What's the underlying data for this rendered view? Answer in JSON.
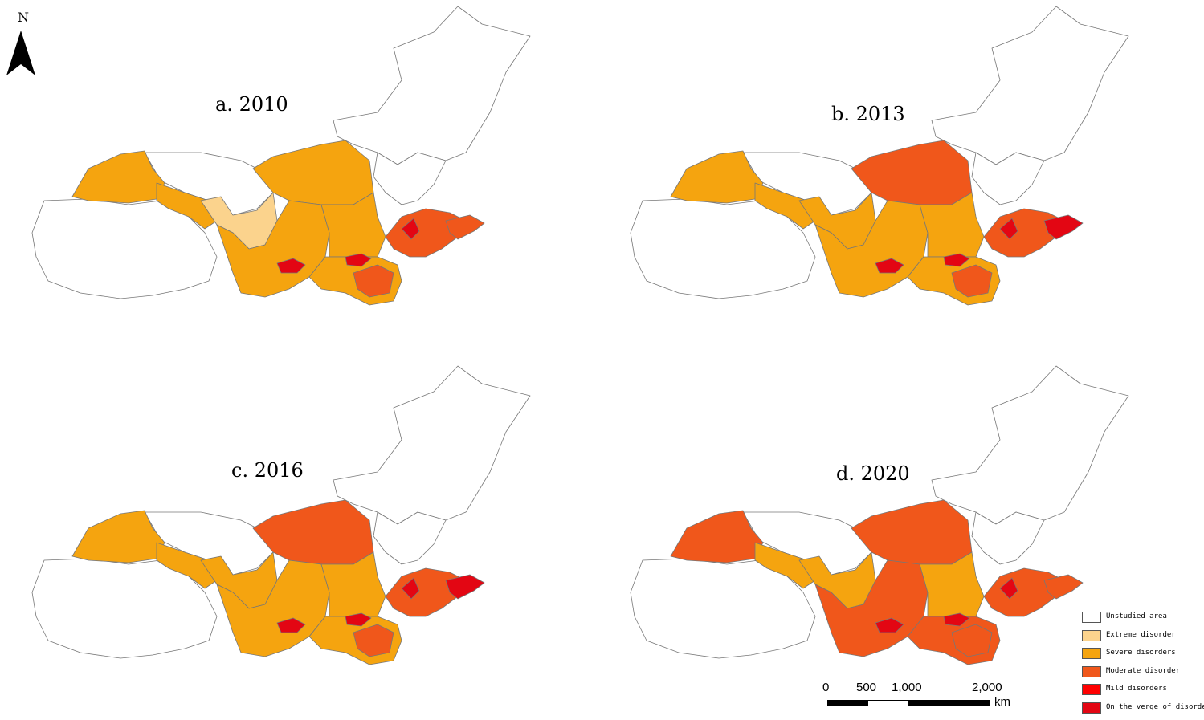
{
  "north_arrow": {
    "letter": "N"
  },
  "panels": [
    {
      "title": "a. 2010",
      "colors": {
        "west": "#F5A40F",
        "qinghai": "#FFFFFF",
        "gansu_strip": "#F5A40F",
        "ningxia": "#FBD38D",
        "inner_west": "#F5A40F",
        "shaanxi": "#F5A40F",
        "shanxi": "#F5A40F",
        "henan": "#F5A40F",
        "shandong": "#F0571B",
        "east_coast": "#F0571B",
        "hot1": "#E30613",
        "hot2": "#E30613",
        "hot3": "#E30613",
        "south_hen": "#F0571B"
      }
    },
    {
      "title": "b. 2013",
      "colors": {
        "west": "#F5A40F",
        "qinghai": "#FFFFFF",
        "gansu_strip": "#F5A40F",
        "ningxia": "#F5A40F",
        "inner_west": "#F0571B",
        "shaanxi": "#F5A40F",
        "shanxi": "#F5A40F",
        "henan": "#F5A40F",
        "shandong": "#F0571B",
        "east_coast": "#E30613",
        "hot1": "#E30613",
        "hot2": "#E30613",
        "hot3": "#E30613",
        "south_hen": "#F0571B"
      }
    },
    {
      "title": "c. 2016",
      "colors": {
        "west": "#F5A40F",
        "qinghai": "#FFFFFF",
        "gansu_strip": "#F5A40F",
        "ningxia": "#F5A40F",
        "inner_west": "#F0571B",
        "shaanxi": "#F5A40F",
        "shanxi": "#F5A40F",
        "henan": "#F5A40F",
        "shandong": "#F0571B",
        "east_coast": "#E30613",
        "hot1": "#E30613",
        "hot2": "#E30613",
        "hot3": "#E30613",
        "south_hen": "#F0571B"
      }
    },
    {
      "title": "d. 2020",
      "colors": {
        "west": "#F0571B",
        "qinghai": "#FFFFFF",
        "gansu_strip": "#F5A40F",
        "ningxia": "#F5A40F",
        "inner_west": "#F0571B",
        "shaanxi": "#F0571B",
        "shanxi": "#F5A40F",
        "henan": "#F0571B",
        "shandong": "#F0571B",
        "east_coast": "#F0571B",
        "hot1": "#E30613",
        "hot2": "#E30613",
        "hot3": "#E30613",
        "south_hen": "#F0571B"
      }
    }
  ],
  "legend": [
    {
      "label": "Unstudied area",
      "color": "#FFFFFF"
    },
    {
      "label": "Extreme disorder",
      "color": "#FBD38D"
    },
    {
      "label": "Severe disorders",
      "color": "#F5A40F"
    },
    {
      "label": "Moderate disorder",
      "color": "#F0571B"
    },
    {
      "label": "Mild disorders",
      "color": "#FF0000"
    },
    {
      "label": "On the verge of disorder",
      "color": "#E30613"
    }
  ],
  "scale_bar": {
    "ticks": [
      "0",
      "500",
      "1,000",
      "2,000"
    ],
    "unit": "km"
  }
}
